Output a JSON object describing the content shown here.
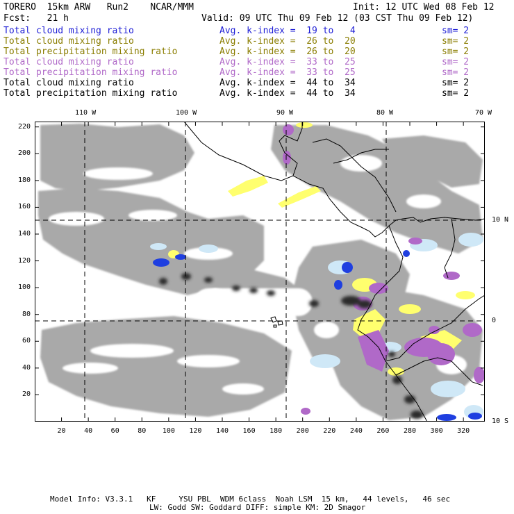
{
  "header": {
    "model": "TORERO  15km ARW   Run2    NCAR/MMM",
    "init": "Init: 12 UTC Wed 08 Feb 12",
    "fcst": "Fcst:   21 h",
    "valid": "Valid: 09 UTC Thu 09 Feb 12 (03 CST Thu 09 Feb 12)"
  },
  "legend": [
    {
      "field": "Total cloud mixing ratio",
      "index": "Avg. k-index =  19 to   4",
      "sm": "sm= 2",
      "color": "#1f1fd6"
    },
    {
      "field": "Total cloud mixing ratio",
      "index": "Avg. k-index =  26 to  20",
      "sm": "sm= 2",
      "color": "#8a7d00"
    },
    {
      "field": "Total precipitation mixing ratio",
      "index": "Avg. k-index =  26 to  20",
      "sm": "sm= 2",
      "color": "#8a7d00"
    },
    {
      "field": "Total cloud mixing ratio",
      "index": "Avg. k-index =  33 to  25",
      "sm": "sm= 2",
      "color": "#b069c8"
    },
    {
      "field": "Total precipitation mixing ratio",
      "index": "Avg. k-index =  33 to  25",
      "sm": "sm= 2",
      "color": "#b069c8"
    },
    {
      "field": "Total cloud mixing ratio",
      "index": "Avg. k-index =  44 to  34",
      "sm": "sm= 2",
      "color": "#000000"
    },
    {
      "field": "Total precipitation mixing ratio",
      "index": "Avg. k-index =  44 to  34",
      "sm": "sm= 2",
      "color": "#000000"
    }
  ],
  "axes": {
    "bottom": [
      "20",
      "40",
      "60",
      "80",
      "100",
      "120",
      "140",
      "160",
      "180",
      "200",
      "220",
      "240",
      "260",
      "280",
      "300",
      "320"
    ],
    "left": [
      "20",
      "40",
      "60",
      "80",
      "100",
      "120",
      "140",
      "160",
      "180",
      "200",
      "220"
    ],
    "lon": [
      "110 W",
      "100 W",
      "90 W",
      "80 W",
      "70 W"
    ],
    "lat": [
      "10 N",
      "0",
      "10 S"
    ]
  },
  "footer": {
    "line1": "Model Info: V3.3.1   KF     YSU PBL  WDM 6class  Noah LSM  15 km,   44 levels,   46 sec",
    "line2": "LW: Godd SW: Goddard DIFF: simple KM: 2D Smagor"
  },
  "colors": {
    "cloud_gray": "#a9a9a9",
    "light_blue": "#cfe8f7",
    "blue": "#1f3fe0",
    "yellow": "#ffff6e",
    "purple": "#b069c8",
    "dark": "#2a2a2a"
  }
}
